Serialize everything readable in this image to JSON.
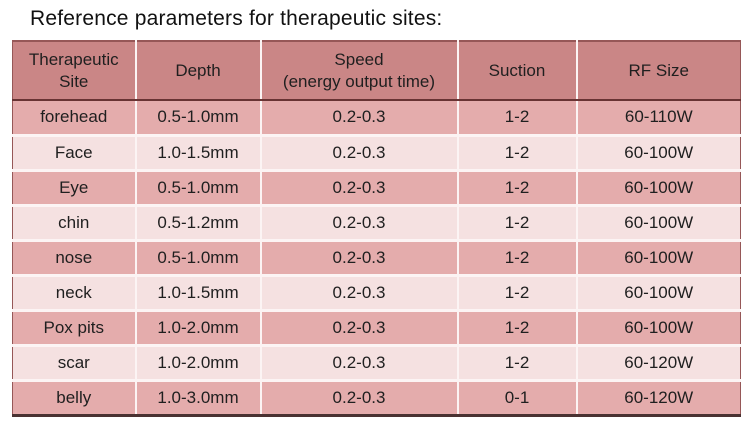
{
  "title": "Reference parameters for therapeutic sites:",
  "colors": {
    "header_bg": "#ca8686",
    "row_dark": "#e4acac",
    "row_light": "#f5e1e1",
    "outer_border": "#965757",
    "header_rule": "#683333",
    "bottom_rule": "#4a3232",
    "grid_line": "#fcf4f4",
    "text": "#1f1f1f",
    "page_bg": "#ffffff"
  },
  "table": {
    "columns": [
      {
        "label": "Therapeutic Site"
      },
      {
        "label": "Depth"
      },
      {
        "label": "Speed",
        "sublabel": "(energy output time)"
      },
      {
        "label": "Suction"
      },
      {
        "label": "RF Size"
      }
    ],
    "rows": [
      {
        "site": "forehead",
        "depth": "0.5-1.0mm",
        "speed": "0.2-0.3",
        "suction": "1-2",
        "rf_size": "60-110W"
      },
      {
        "site": "Face",
        "depth": "1.0-1.5mm",
        "speed": "0.2-0.3",
        "suction": "1-2",
        "rf_size": "60-100W"
      },
      {
        "site": "Eye",
        "depth": "0.5-1.0mm",
        "speed": "0.2-0.3",
        "suction": "1-2",
        "rf_size": "60-100W"
      },
      {
        "site": "chin",
        "depth": "0.5-1.2mm",
        "speed": "0.2-0.3",
        "suction": "1-2",
        "rf_size": "60-100W"
      },
      {
        "site": "nose",
        "depth": "0.5-1.0mm",
        "speed": "0.2-0.3",
        "suction": "1-2",
        "rf_size": "60-100W"
      },
      {
        "site": "neck",
        "depth": "1.0-1.5mm",
        "speed": "0.2-0.3",
        "suction": "1-2",
        "rf_size": "60-100W"
      },
      {
        "site": "Pox pits",
        "depth": "1.0-2.0mm",
        "speed": "0.2-0.3",
        "suction": "1-2",
        "rf_size": "60-100W"
      },
      {
        "site": "scar",
        "depth": "1.0-2.0mm",
        "speed": "0.2-0.3",
        "suction": "1-2",
        "rf_size": "60-120W"
      },
      {
        "site": "belly",
        "depth": "1.0-3.0mm",
        "speed": "0.2-0.3",
        "suction": "0-1",
        "rf_size": "60-120W"
      }
    ]
  }
}
